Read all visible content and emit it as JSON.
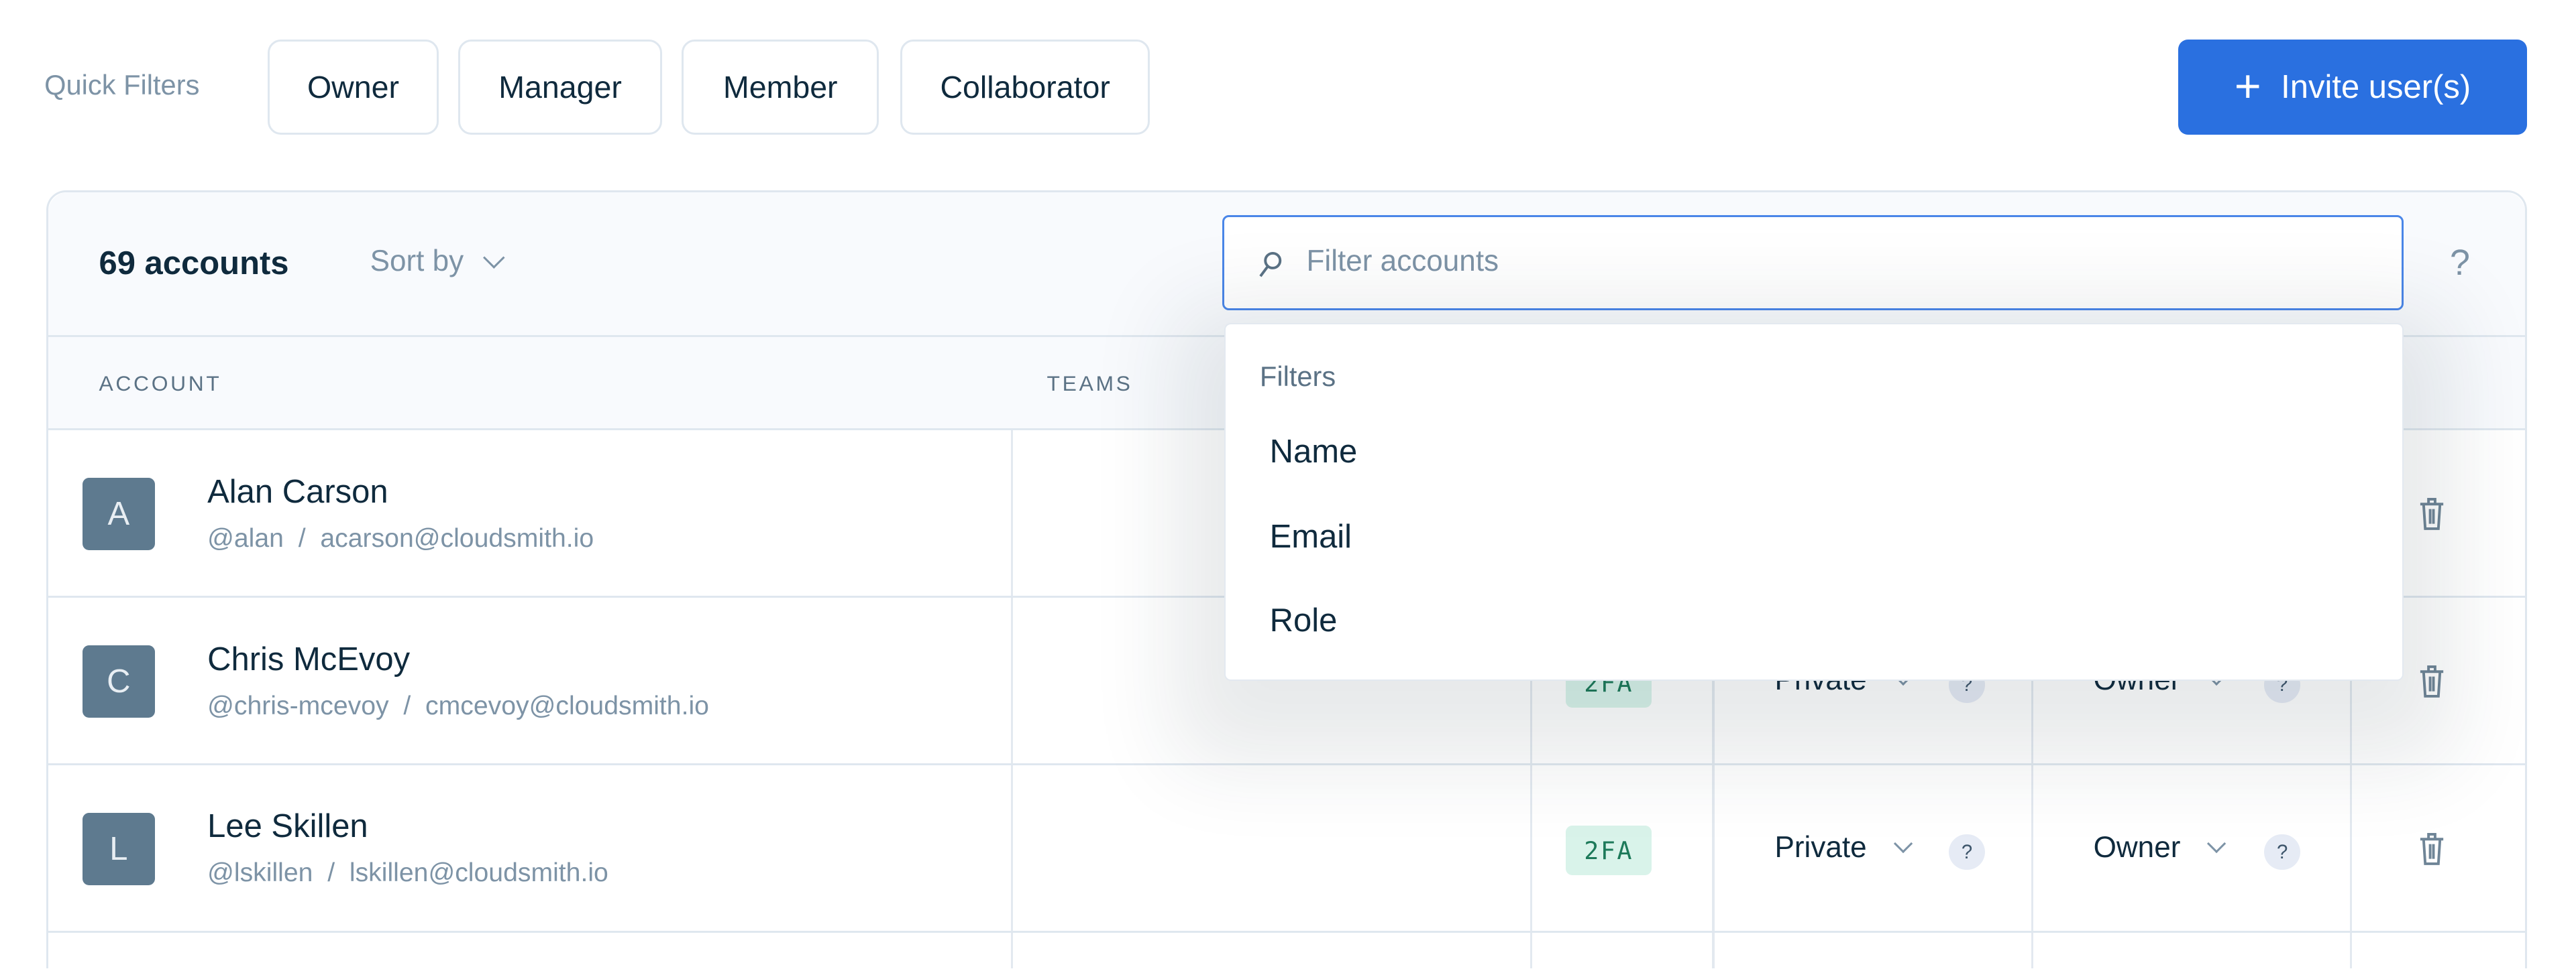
{
  "quick_filters": {
    "label": "Quick Filters",
    "chips": [
      "Owner",
      "Manager",
      "Member",
      "Collaborator"
    ]
  },
  "invite_button": {
    "icon": "plus-icon",
    "label": "Invite user(s)",
    "color": "#2a70e0"
  },
  "toolbar": {
    "count": "69 accounts",
    "sort_label": "Sort by",
    "search_placeholder": "Filter accounts",
    "help": "?"
  },
  "columns": {
    "account": "ACCOUNT",
    "teams": "TEAMS"
  },
  "filter_dropdown": {
    "title": "Filters",
    "items": [
      "Name",
      "Email",
      "Role"
    ]
  },
  "rows": [
    {
      "initial": "A",
      "name": "Alan Carson",
      "username": "@alan",
      "email": "acarson@cloudsmith.io"
    },
    {
      "initial": "C",
      "name": "Chris McEvoy",
      "username": "@chris-mcevoy",
      "email": "cmcevoy@cloudsmith.io",
      "badge": "2FA",
      "privacy": "Private",
      "role": "Owner"
    },
    {
      "initial": "L",
      "name": "Lee Skillen",
      "username": "@lskillen",
      "email": "lskillen@cloudsmith.io",
      "badge": "2FA",
      "privacy": "Private",
      "role": "Owner"
    }
  ],
  "separator": "/",
  "help_glyph": "?"
}
